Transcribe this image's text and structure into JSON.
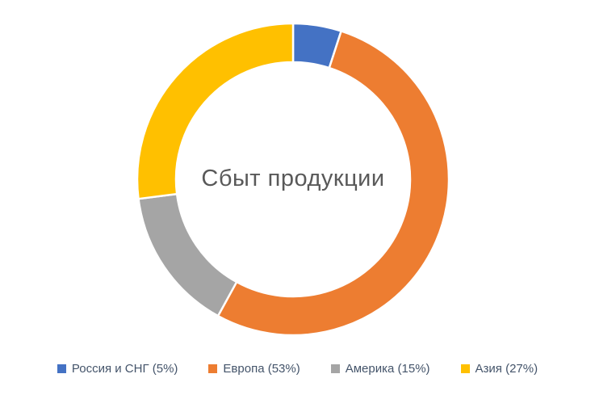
{
  "chart_data": {
    "type": "pie",
    "subtype": "donut",
    "title": "Сбыт продукции",
    "categories": [
      "Россия и СНГ",
      "Европа",
      "Америка",
      "Азия"
    ],
    "values": [
      5,
      53,
      15,
      27
    ],
    "unit": "%",
    "colors": [
      "#4472C4",
      "#ED7D31",
      "#A5A5A5",
      "#FFC000"
    ],
    "legend": [
      "Россия и СНГ (5%)",
      "Европа (53%)",
      "Америка (15%)",
      "Азия (27%)"
    ],
    "legend_position": "bottom",
    "start_angle_deg": -90,
    "direction": "clockwise",
    "donut_hole_ratio": 0.75,
    "background": "#ffffff"
  }
}
